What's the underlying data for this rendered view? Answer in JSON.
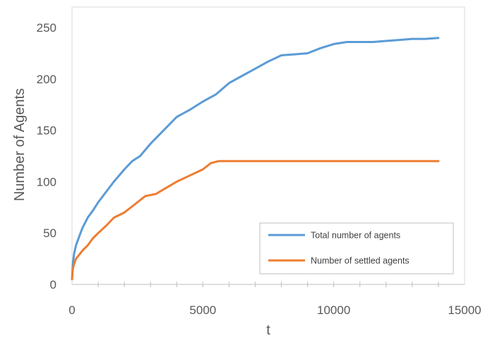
{
  "chart_data": {
    "type": "line",
    "title": "",
    "xlabel": "t",
    "ylabel": "Number of Agents",
    "xlim": [
      0,
      15000
    ],
    "ylim": [
      0,
      270
    ],
    "xticks": [
      0,
      5000,
      10000,
      15000
    ],
    "yticks": [
      0,
      50,
      100,
      150,
      200,
      250
    ],
    "xtick_labels": [
      "0",
      "5000",
      "10000",
      "15000"
    ],
    "ytick_labels": [
      "0",
      "50",
      "100",
      "150",
      "200",
      "250"
    ],
    "grid": false,
    "legend_position": "bottom-right",
    "series": [
      {
        "name": "Total number of agents",
        "color": "#5b9bd5",
        "x": [
          0,
          30,
          80,
          150,
          250,
          400,
          600,
          800,
          1000,
          1300,
          1600,
          2000,
          2300,
          2600,
          3000,
          3500,
          4000,
          4500,
          5000,
          5500,
          6000,
          6500,
          7000,
          7500,
          8000,
          8500,
          9000,
          9500,
          10000,
          10500,
          11000,
          11500,
          12000,
          12500,
          13000,
          13500,
          14000
        ],
        "y": [
          5,
          20,
          30,
          38,
          45,
          55,
          65,
          72,
          80,
          90,
          100,
          112,
          120,
          125,
          137,
          150,
          163,
          170,
          178,
          185,
          196,
          203,
          210,
          217,
          223,
          224,
          225,
          230,
          234,
          236,
          236,
          236,
          237,
          238,
          239,
          239,
          240
        ]
      },
      {
        "name": "Number of settled agents",
        "color": "#ed7d31",
        "x": [
          0,
          30,
          80,
          150,
          250,
          400,
          600,
          800,
          1000,
          1300,
          1600,
          2000,
          2400,
          2800,
          3200,
          3600,
          4000,
          4500,
          5000,
          5300,
          5600,
          6000,
          7000,
          8000,
          9000,
          10000,
          11000,
          12000,
          13000,
          14000
        ],
        "y": [
          5,
          15,
          20,
          25,
          28,
          33,
          38,
          45,
          50,
          57,
          65,
          70,
          78,
          86,
          88,
          94,
          100,
          106,
          112,
          118,
          120,
          120,
          120,
          120,
          120,
          120,
          120,
          120,
          120,
          120
        ]
      }
    ]
  }
}
